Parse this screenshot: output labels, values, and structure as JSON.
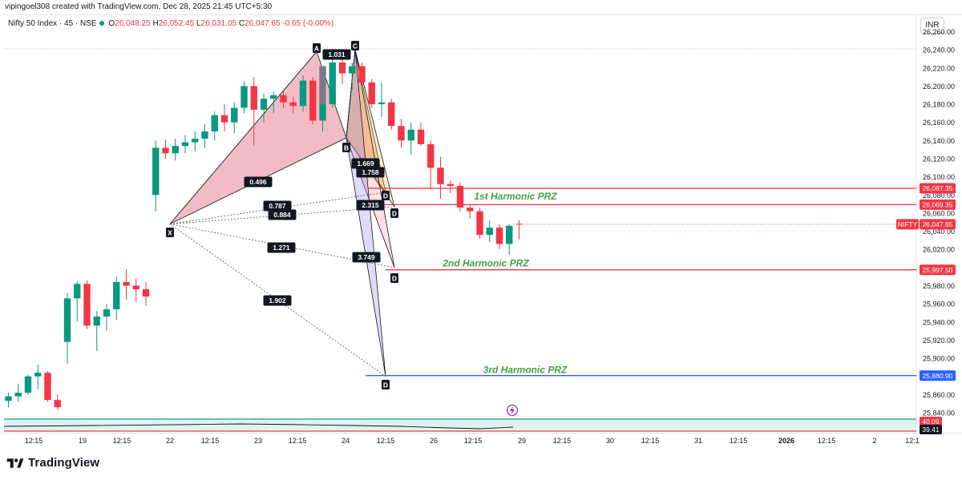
{
  "header": {
    "credit": "vipingoel308 created with TradingView.com, Dec 28, 2025 21:45 UTC+5:30"
  },
  "legend": {
    "symbol": "Nifty 50 Index · 45 · NSE",
    "open_label": "O",
    "open": "26,048.25",
    "high_label": "H",
    "high": "26,052.45",
    "low_label": "L",
    "low": "26,031.05",
    "close_label": "C",
    "close": "26,047.65",
    "change": "-0.65 (-0.00%)"
  },
  "currency": "INR",
  "brand": "TradingView",
  "colors": {
    "up": "#089981",
    "down": "#f23645",
    "prz_red": "#f23645",
    "prz_blue": "#2962ff",
    "pattern_fill": "#e06a7a",
    "prz_text": "#43a047"
  },
  "chart_data": {
    "type": "candlestick",
    "symbol": "NIFTY",
    "interval": "45",
    "y_axis": {
      "ticks": [
        "26,260.00",
        "26,240.00",
        "26,220.00",
        "26,200.00",
        "26,180.00",
        "26,160.00",
        "26,140.00",
        "26,120.00",
        "26,100.00",
        "26,080.00",
        "26,060.00",
        "26,040.00",
        "26,020.00",
        "26,000.00",
        "25,980.00",
        "25,960.00",
        "25,940.00",
        "25,920.00",
        "25,900.00",
        "25,880.00",
        "25,860.00",
        "25,840.00"
      ],
      "range": [
        25830,
        26270
      ]
    },
    "x_axis": {
      "ticks": [
        "12:15",
        "19",
        "12:15",
        "22",
        "12:15",
        "23",
        "12:15",
        "24",
        "12:15",
        "26",
        "12:15",
        "29",
        "12:15",
        "30",
        "12:15",
        "31",
        "12:15",
        "2026",
        "12:15",
        "2",
        "12:1"
      ]
    },
    "price_labels": [
      {
        "text": "26,087.35",
        "value": 26087.35,
        "color": "#f23645"
      },
      {
        "text": "26,069.35",
        "value": 26069.35,
        "color": "#f23645"
      },
      {
        "text": "NIFTY",
        "value": 26047.65,
        "color": "#f23645"
      },
      {
        "text": "26,047.65",
        "value": 26047.65,
        "color": "#f23645"
      },
      {
        "text": "25,997.50",
        "value": 25997.5,
        "color": "#f23645"
      },
      {
        "text": "25,880.90",
        "value": 25880.9,
        "color": "#2962ff"
      }
    ],
    "indicator_labels": [
      {
        "text": "40.09",
        "color": "#f23645"
      },
      {
        "text": "39.41",
        "color": "#131722"
      }
    ],
    "candles": [
      {
        "o": 25853,
        "h": 25862,
        "l": 25846,
        "c": 25858
      },
      {
        "o": 25858,
        "h": 25872,
        "l": 25852,
        "c": 25862
      },
      {
        "o": 25862,
        "h": 25882,
        "l": 25860,
        "c": 25880
      },
      {
        "o": 25880,
        "h": 25893,
        "l": 25866,
        "c": 25884
      },
      {
        "o": 25884,
        "h": 25886,
        "l": 25852,
        "c": 25854
      },
      {
        "o": 25854,
        "h": 25860,
        "l": 25843,
        "c": 25846
      },
      {
        "o": 25918,
        "h": 25972,
        "l": 25894,
        "c": 25966
      },
      {
        "o": 25966,
        "h": 25985,
        "l": 25940,
        "c": 25982
      },
      {
        "o": 25982,
        "h": 25986,
        "l": 25932,
        "c": 25936
      },
      {
        "o": 25936,
        "h": 25952,
        "l": 25908,
        "c": 25946
      },
      {
        "o": 25946,
        "h": 25960,
        "l": 25930,
        "c": 25954
      },
      {
        "o": 25954,
        "h": 25990,
        "l": 25942,
        "c": 25984
      },
      {
        "o": 25984,
        "h": 25998,
        "l": 25965,
        "c": 25980
      },
      {
        "o": 25980,
        "h": 25988,
        "l": 25962,
        "c": 25976
      },
      {
        "o": 25976,
        "h": 25984,
        "l": 25958,
        "c": 25968
      },
      {
        "o": 26080,
        "h": 26140,
        "l": 26062,
        "c": 26132
      },
      {
        "o": 26132,
        "h": 26141,
        "l": 26120,
        "c": 26126
      },
      {
        "o": 26126,
        "h": 26142,
        "l": 26118,
        "c": 26134
      },
      {
        "o": 26134,
        "h": 26146,
        "l": 26126,
        "c": 26138
      },
      {
        "o": 26138,
        "h": 26150,
        "l": 26128,
        "c": 26142
      },
      {
        "o": 26142,
        "h": 26158,
        "l": 26132,
        "c": 26150
      },
      {
        "o": 26150,
        "h": 26172,
        "l": 26140,
        "c": 26168
      },
      {
        "o": 26168,
        "h": 26180,
        "l": 26150,
        "c": 26160
      },
      {
        "o": 26160,
        "h": 26182,
        "l": 26148,
        "c": 26176
      },
      {
        "o": 26176,
        "h": 26205,
        "l": 26170,
        "c": 26200
      },
      {
        "o": 26200,
        "h": 26210,
        "l": 26134,
        "c": 26174
      },
      {
        "o": 26174,
        "h": 26192,
        "l": 26160,
        "c": 26186
      },
      {
        "o": 26186,
        "h": 26194,
        "l": 26170,
        "c": 26190
      },
      {
        "o": 26190,
        "h": 26195,
        "l": 26176,
        "c": 26182
      },
      {
        "o": 26182,
        "h": 26188,
        "l": 26170,
        "c": 26178
      },
      {
        "o": 26178,
        "h": 26212,
        "l": 26172,
        "c": 26206
      },
      {
        "o": 26206,
        "h": 26210,
        "l": 26158,
        "c": 26162
      },
      {
        "o": 26162,
        "h": 26188,
        "l": 26150,
        "c": 26180
      },
      {
        "o": 26180,
        "h": 26232,
        "l": 26176,
        "c": 26226
      },
      {
        "o": 26226,
        "h": 26240,
        "l": 26202,
        "c": 26214
      },
      {
        "o": 26214,
        "h": 26226,
        "l": 26196,
        "c": 26222
      },
      {
        "o": 26222,
        "h": 26226,
        "l": 26198,
        "c": 26204
      },
      {
        "o": 26204,
        "h": 26208,
        "l": 26176,
        "c": 26180
      },
      {
        "o": 26180,
        "h": 26204,
        "l": 26166,
        "c": 26182
      },
      {
        "o": 26182,
        "h": 26186,
        "l": 26152,
        "c": 26156
      },
      {
        "o": 26156,
        "h": 26164,
        "l": 26132,
        "c": 26140
      },
      {
        "o": 26140,
        "h": 26160,
        "l": 26124,
        "c": 26152
      },
      {
        "o": 26152,
        "h": 26160,
        "l": 26134,
        "c": 26136
      },
      {
        "o": 26136,
        "h": 26140,
        "l": 26086,
        "c": 26110
      },
      {
        "o": 26110,
        "h": 26122,
        "l": 26076,
        "c": 26092
      },
      {
        "o": 26092,
        "h": 26096,
        "l": 26082,
        "c": 26090
      },
      {
        "o": 26090,
        "h": 26094,
        "l": 26062,
        "c": 26066
      },
      {
        "o": 26066,
        "h": 26070,
        "l": 26054,
        "c": 26062
      },
      {
        "o": 26062,
        "h": 26066,
        "l": 26032,
        "c": 26036
      },
      {
        "o": 26036,
        "h": 26052,
        "l": 26028,
        "c": 26044
      },
      {
        "o": 26044,
        "h": 26048,
        "l": 26020,
        "c": 26026
      },
      {
        "o": 26026,
        "h": 26048,
        "l": 26014,
        "c": 26046
      },
      {
        "o": 26048.25,
        "h": 26052.45,
        "l": 26031.05,
        "c": 26047.65
      }
    ],
    "harmonic": {
      "points": [
        {
          "label": "X",
          "value": 26048
        },
        {
          "label": "A",
          "value": 26238
        },
        {
          "label": "B",
          "value": 26143
        },
        {
          "label": "C",
          "value": 26240
        },
        {
          "label": "D",
          "value": 26083
        },
        {
          "label": "D",
          "value": 26067
        },
        {
          "label": "D",
          "value": 26000
        },
        {
          "label": "D",
          "value": 25880
        }
      ],
      "ratios": [
        "1.031",
        "0.496",
        "0.787",
        "0.884",
        "1.271",
        "1.902",
        "1.669",
        "1.758",
        "2.315",
        "3.749"
      ]
    },
    "annotations": [
      {
        "text": "1st Harmonic PRZ",
        "value": 26087.35
      },
      {
        "text": "2nd Harmonic PRZ",
        "value": 25997.5
      },
      {
        "text": "3rd Harmonic PRZ",
        "value": 25880.9
      }
    ]
  }
}
